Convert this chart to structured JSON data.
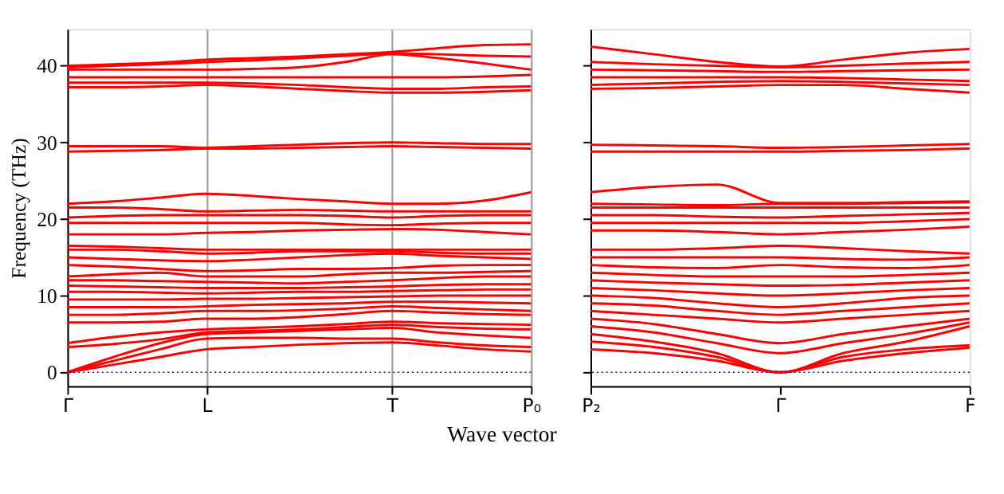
{
  "chart_data": [
    {
      "type": "line",
      "ylabel": "Frequency (THz)",
      "xlabel": "Wave vector",
      "categories": [
        "Γ",
        null,
        null,
        "L",
        null,
        null,
        null,
        "T",
        null,
        null,
        "P₀"
      ],
      "ylim": [
        -1.8,
        44.8
      ],
      "yticks": [
        0,
        10,
        20,
        30,
        40
      ],
      "grid": "x",
      "marker": "none",
      "line_style": "solid",
      "legend": false,
      "ref_lines": [
        {
          "axis": "y",
          "value": 0,
          "color": "#0000ff",
          "line_style": "dotted"
        }
      ],
      "series": [
        {
          "color": "#ff0000",
          "values": [
            0,
            1,
            2,
            3,
            3.3,
            3.6,
            3.8,
            3.9,
            3.5,
            3,
            2.7
          ]
        },
        {
          "color": "#ff0000",
          "values": [
            0,
            1.5,
            3,
            4.4,
            4.5,
            4.5,
            4.4,
            4.4,
            3.9,
            3.5,
            3.3
          ]
        },
        {
          "color": "#ff0000",
          "values": [
            0,
            2,
            3.8,
            5,
            5.2,
            5.4,
            5.6,
            5.8,
            5.2,
            4.8,
            4.5
          ]
        },
        {
          "color": "#ff0000",
          "values": [
            3.3,
            3.7,
            4.3,
            5.2,
            5.4,
            5.6,
            5.9,
            6.2,
            5.9,
            5.7,
            5.6
          ]
        },
        {
          "color": "#ff0000",
          "values": [
            3.8,
            4.6,
            5.2,
            5.6,
            5.8,
            6,
            6.3,
            6.6,
            6.4,
            6.3,
            6.2
          ]
        },
        {
          "color": "#ff0000",
          "values": [
            6.5,
            6.5,
            6.6,
            7,
            7,
            7.2,
            7.6,
            8,
            7.8,
            7.6,
            7.5
          ]
        },
        {
          "color": "#ff0000",
          "values": [
            7.5,
            7.5,
            7.7,
            8,
            8,
            8.1,
            8.3,
            8.6,
            8.4,
            8.2,
            8
          ]
        },
        {
          "color": "#ff0000",
          "values": [
            8.5,
            8.5,
            8.5,
            8.6,
            8.8,
            8.9,
            9,
            9.2,
            9.2,
            9.1,
            9
          ]
        },
        {
          "color": "#ff0000",
          "values": [
            9.5,
            9.5,
            9.5,
            9.6,
            9.6,
            9.7,
            9.8,
            9.9,
            10,
            10,
            10
          ]
        },
        {
          "color": "#ff0000",
          "values": [
            10.5,
            10.5,
            10.4,
            10.3,
            10.4,
            10.5,
            10.5,
            10.6,
            10.7,
            10.8,
            10.8
          ]
        },
        {
          "color": "#ff0000",
          "values": [
            11.3,
            11.2,
            11.1,
            11,
            11,
            11,
            11.1,
            11.2,
            11.4,
            11.5,
            11.5
          ]
        },
        {
          "color": "#ff0000",
          "values": [
            12,
            12,
            11.9,
            11.8,
            11.7,
            11.6,
            11.8,
            12,
            12.3,
            12.5,
            12.5
          ]
        },
        {
          "color": "#ff0000",
          "values": [
            12.5,
            12.8,
            13,
            12.5,
            12.5,
            12.5,
            12.8,
            13,
            13,
            13.1,
            13.2
          ]
        },
        {
          "color": "#ff0000",
          "values": [
            14,
            13.8,
            13.5,
            13.2,
            13.3,
            13.5,
            13.5,
            13.6,
            13.9,
            14,
            14
          ]
        },
        {
          "color": "#ff0000",
          "values": [
            15,
            14.8,
            14.6,
            14.5,
            14.7,
            15,
            15.3,
            15.5,
            15.2,
            15,
            14.8
          ]
        },
        {
          "color": "#ff0000",
          "values": [
            16,
            16,
            15.8,
            15.5,
            15.6,
            15.8,
            15.8,
            15.8,
            15.6,
            15.5,
            15.5
          ]
        },
        {
          "color": "#ff0000",
          "values": [
            16.5,
            16.4,
            16.2,
            16,
            16,
            16,
            16,
            16,
            16,
            16,
            16
          ]
        },
        {
          "color": "#ff0000",
          "values": [
            18,
            18,
            18,
            18.2,
            18.3,
            18.5,
            18.6,
            18.7,
            18.6,
            18.3,
            18
          ]
        },
        {
          "color": "#ff0000",
          "values": [
            19.5,
            19.5,
            19.5,
            19.5,
            19.5,
            19.5,
            19.3,
            19.2,
            19.4,
            19.5,
            19.5
          ]
        },
        {
          "color": "#ff0000",
          "values": [
            20.2,
            20.4,
            20.5,
            20.5,
            20.5,
            20.5,
            20.4,
            20.2,
            20.4,
            20.5,
            20.5
          ]
        },
        {
          "color": "#ff0000",
          "values": [
            21.5,
            21.5,
            21.3,
            21,
            21.1,
            21.2,
            21.1,
            21,
            21,
            21,
            21
          ]
        },
        {
          "color": "#ff0000",
          "values": [
            22,
            22.3,
            22.8,
            23.3,
            23,
            22.6,
            22.3,
            22,
            22,
            22.4,
            23.5
          ]
        },
        {
          "color": "#ff0000",
          "values": [
            28.8,
            28.9,
            29,
            29.2,
            29.2,
            29.3,
            29.4,
            29.5,
            29.4,
            29.3,
            29.2
          ]
        },
        {
          "color": "#ff0000",
          "values": [
            29.5,
            29.5,
            29.5,
            29.3,
            29.5,
            29.7,
            29.9,
            30,
            29.9,
            29.8,
            29.8
          ]
        },
        {
          "color": "#ff0000",
          "values": [
            37.2,
            37.2,
            37.3,
            37.5,
            37.3,
            37,
            36.7,
            36.5,
            36.5,
            36.6,
            36.8
          ]
        },
        {
          "color": "#ff0000",
          "values": [
            37.8,
            37.8,
            37.8,
            37.8,
            37.7,
            37.5,
            37.2,
            37,
            37,
            37.2,
            37.3
          ]
        },
        {
          "color": "#ff0000",
          "values": [
            38.5,
            38.5,
            38.5,
            38.5,
            38.5,
            38.5,
            38.5,
            38.5,
            38.5,
            38.6,
            38.8
          ]
        },
        {
          "color": "#ff0000",
          "values": [
            39.5,
            39.5,
            39.5,
            39.5,
            39.6,
            39.8,
            40.5,
            41.5,
            41,
            40.3,
            39.5
          ]
        },
        {
          "color": "#ff0000",
          "values": [
            39.8,
            40,
            40.2,
            40.5,
            40.7,
            41,
            41.3,
            41.6,
            41.5,
            41.3,
            41.2
          ]
        },
        {
          "color": "#ff0000",
          "values": [
            40,
            40.2,
            40.4,
            40.8,
            41,
            41.2,
            41.5,
            41.8,
            42.3,
            42.7,
            42.8
          ]
        }
      ]
    },
    {
      "type": "line",
      "categories": [
        "P₂",
        null,
        null,
        "Γ",
        null,
        null,
        "F"
      ],
      "ylim": [
        -1.8,
        44.8
      ],
      "yticks": [
        0,
        10,
        20,
        30,
        40
      ],
      "tick_labels": "x",
      "marker": "none",
      "line_style": "solid",
      "legend": false,
      "ref_lines": [
        {
          "axis": "y",
          "value": 0,
          "color": "#0000ff",
          "line_style": "dotted"
        }
      ],
      "series": [
        {
          "color": "#ff0000",
          "values": [
            3,
            2.5,
            1.5,
            0,
            1.5,
            2.5,
            3.2
          ]
        },
        {
          "color": "#ff0000",
          "values": [
            4,
            3.3,
            2,
            0,
            2,
            3,
            3.5
          ]
        },
        {
          "color": "#ff0000",
          "values": [
            5,
            4,
            2.5,
            0,
            2.5,
            4,
            6
          ]
        },
        {
          "color": "#ff0000",
          "values": [
            6,
            5.2,
            3.8,
            2.5,
            3.8,
            5,
            6.5
          ]
        },
        {
          "color": "#ff0000",
          "values": [
            7,
            6.3,
            5,
            3.8,
            5,
            6,
            7
          ]
        },
        {
          "color": "#ff0000",
          "values": [
            8,
            7.5,
            7,
            6.5,
            7,
            7.5,
            8
          ]
        },
        {
          "color": "#ff0000",
          "values": [
            9,
            8.7,
            8,
            7.5,
            8,
            8.5,
            9
          ]
        },
        {
          "color": "#ff0000",
          "values": [
            10,
            9.7,
            9,
            8.5,
            9,
            9.7,
            10
          ]
        },
        {
          "color": "#ff0000",
          "values": [
            11,
            10.7,
            10.3,
            10,
            10.3,
            10.7,
            11
          ]
        },
        {
          "color": "#ff0000",
          "values": [
            12,
            11.7,
            11.5,
            11.3,
            11.4,
            11.7,
            12
          ]
        },
        {
          "color": "#ff0000",
          "values": [
            13,
            12.7,
            12.5,
            12.5,
            12.5,
            12.7,
            13
          ]
        },
        {
          "color": "#ff0000",
          "values": [
            14,
            13.7,
            13.6,
            14,
            13.7,
            13.6,
            14
          ]
        },
        {
          "color": "#ff0000",
          "values": [
            15,
            15,
            15,
            15,
            14.8,
            14.7,
            15
          ]
        },
        {
          "color": "#ff0000",
          "values": [
            16,
            16,
            16.2,
            16.5,
            16.2,
            15.8,
            15.5
          ]
        },
        {
          "color": "#ff0000",
          "values": [
            18.5,
            18.5,
            18.3,
            18,
            18.3,
            18.6,
            19
          ]
        },
        {
          "color": "#ff0000",
          "values": [
            19.5,
            19.5,
            19.5,
            19.5,
            19.5,
            19.7,
            20
          ]
        },
        {
          "color": "#ff0000",
          "values": [
            20.5,
            20.5,
            20.3,
            20.2,
            20.4,
            20.6,
            20.8
          ]
        },
        {
          "color": "#ff0000",
          "values": [
            21.5,
            21.5,
            21.5,
            21.5,
            21.5,
            21.5,
            21.5
          ]
        },
        {
          "color": "#ff0000",
          "values": [
            22,
            21.9,
            21.8,
            22,
            22,
            22.1,
            22.2
          ]
        },
        {
          "color": "#ff0000",
          "values": [
            23.5,
            24.2,
            24.5,
            22.1,
            22.1,
            22.2,
            22.3
          ]
        },
        {
          "color": "#ff0000",
          "values": [
            28.8,
            28.8,
            28.8,
            28.8,
            28.9,
            29,
            29.2
          ]
        },
        {
          "color": "#ff0000",
          "values": [
            29.7,
            29.6,
            29.5,
            29.3,
            29.4,
            29.6,
            29.8
          ]
        },
        {
          "color": "#ff0000",
          "values": [
            37,
            37.1,
            37.3,
            37.5,
            37.5,
            37,
            36.5
          ]
        },
        {
          "color": "#ff0000",
          "values": [
            37.5,
            37.7,
            37.9,
            38,
            37.9,
            37.7,
            37.5
          ]
        },
        {
          "color": "#ff0000",
          "values": [
            38.5,
            38.5,
            38.5,
            38.5,
            38.4,
            38.2,
            38
          ]
        },
        {
          "color": "#ff0000",
          "values": [
            39.5,
            39.4,
            39.3,
            39.2,
            39.3,
            39.4,
            39.5
          ]
        },
        {
          "color": "#ff0000",
          "values": [
            40.5,
            40.2,
            40,
            39.8,
            40,
            40.3,
            40.5
          ]
        },
        {
          "color": "#ff0000",
          "values": [
            42.5,
            41.5,
            40.5,
            39.9,
            40.8,
            41.7,
            42.2
          ]
        }
      ]
    }
  ]
}
